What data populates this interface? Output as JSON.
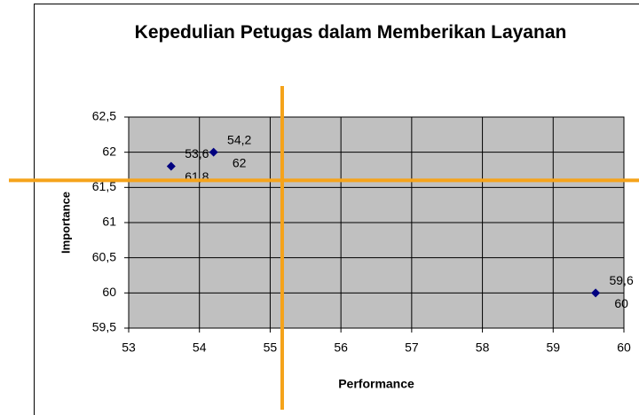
{
  "chart_data": {
    "type": "scatter",
    "title": "Kepedulian Petugas dalam Memberikan Layanan",
    "x_label": "Performance",
    "y_label": "Importance",
    "series": [
      {
        "color": "#000080",
        "x": [
          53.6,
          54.2,
          59.6
        ],
        "x_labels": [
          "53,6",
          "54,2",
          "59,6"
        ],
        "values": [
          61.8,
          62,
          60
        ],
        "value_labels": [
          "61,8",
          "62",
          "60"
        ]
      }
    ],
    "xlim": [
      53,
      60
    ],
    "xticks": [
      53,
      54,
      55,
      56,
      57,
      58,
      59,
      60
    ],
    "ylim": [
      59.5,
      62.5
    ],
    "yticks": [
      {
        "value": 59.5,
        "label": "59,5"
      },
      60,
      {
        "value": 60.5,
        "label": "60,5"
      },
      61,
      {
        "value": 61.5,
        "label": "61,5"
      },
      62,
      {
        "value": 62.5,
        "label": "62,5"
      }
    ],
    "grid": true,
    "reference_lines": {
      "x": 55.17,
      "y": 61.6,
      "color": "#f5a31a"
    }
  }
}
